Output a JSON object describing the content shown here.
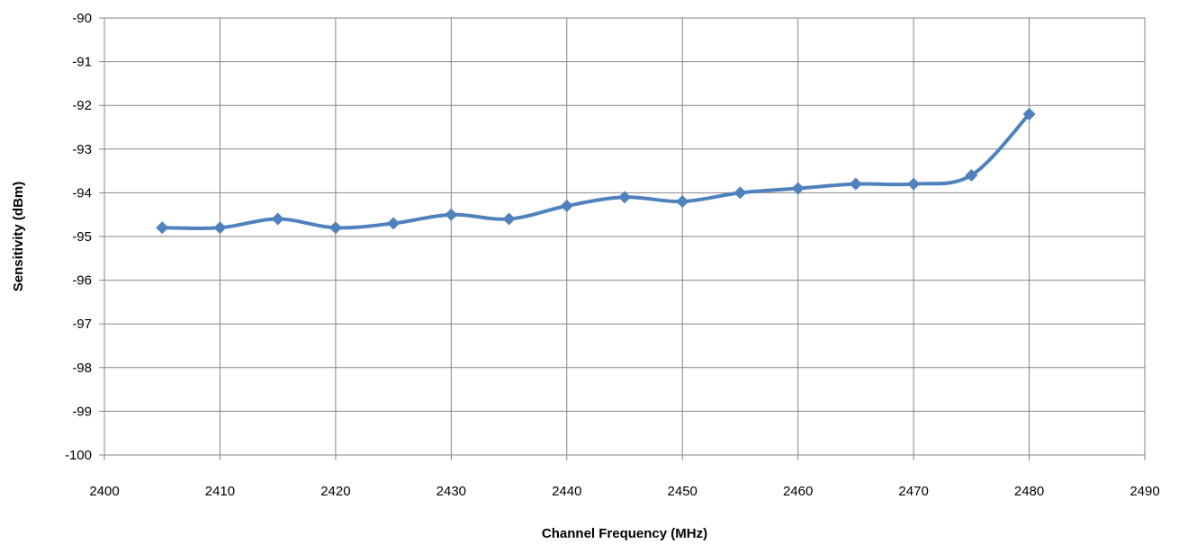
{
  "chart_data": {
    "type": "line",
    "title": "",
    "xlabel": "Channel Frequency (MHz)",
    "ylabel": "Sensitivity (dBm)",
    "xlim": [
      2400,
      2490
    ],
    "ylim": [
      -100,
      -90
    ],
    "x_ticks": [
      2400,
      2410,
      2420,
      2430,
      2440,
      2450,
      2460,
      2470,
      2480,
      2490
    ],
    "y_ticks": [
      -90,
      -91,
      -92,
      -93,
      -94,
      -95,
      -96,
      -97,
      -98,
      -99,
      -100
    ],
    "grid": true,
    "legend": "none",
    "series": [
      {
        "color": "#4F81BD",
        "marker": "diamond",
        "smooth": true,
        "x": [
          2405,
          2410,
          2415,
          2420,
          2425,
          2430,
          2435,
          2440,
          2445,
          2450,
          2455,
          2460,
          2465,
          2470,
          2475,
          2480
        ],
        "y": [
          -94.8,
          -94.8,
          -94.6,
          -94.8,
          -94.7,
          -94.5,
          -94.6,
          -94.3,
          -94.1,
          -94.2,
          -94.0,
          -93.9,
          -93.8,
          -93.8,
          -93.6,
          -92.2
        ]
      }
    ]
  }
}
